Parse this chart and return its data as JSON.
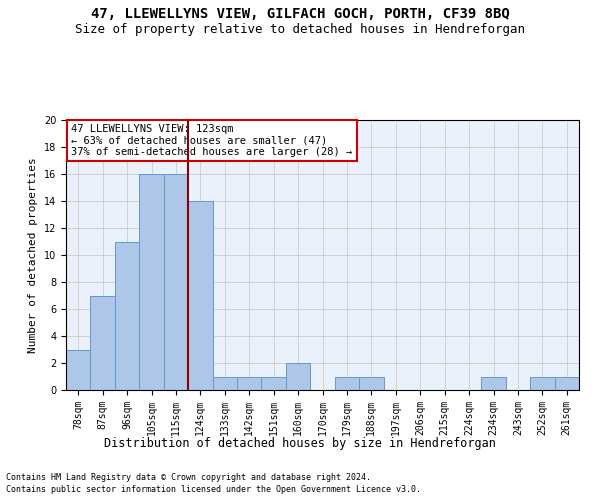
{
  "title1": "47, LLEWELLYNS VIEW, GILFACH GOCH, PORTH, CF39 8BQ",
  "title2": "Size of property relative to detached houses in Hendreforgan",
  "xlabel": "Distribution of detached houses by size in Hendreforgan",
  "ylabel": "Number of detached properties",
  "footnote1": "Contains HM Land Registry data © Crown copyright and database right 2024.",
  "footnote2": "Contains public sector information licensed under the Open Government Licence v3.0.",
  "bin_labels": [
    "78sqm",
    "87sqm",
    "96sqm",
    "105sqm",
    "115sqm",
    "124sqm",
    "133sqm",
    "142sqm",
    "151sqm",
    "160sqm",
    "170sqm",
    "179sqm",
    "188sqm",
    "197sqm",
    "206sqm",
    "215sqm",
    "224sqm",
    "234sqm",
    "243sqm",
    "252sqm",
    "261sqm"
  ],
  "bar_values": [
    3,
    7,
    11,
    16,
    16,
    14,
    1,
    1,
    1,
    2,
    0,
    1,
    1,
    0,
    0,
    0,
    0,
    1,
    0,
    1,
    1
  ],
  "bar_color": "#aec6e8",
  "bar_edge_color": "#5b9bd5",
  "property_line_color": "#8b0000",
  "annotation_text": "47 LLEWELLYNS VIEW: 123sqm\n← 63% of detached houses are smaller (47)\n37% of semi-detached houses are larger (28) →",
  "annotation_box_color": "#ffffff",
  "annotation_box_edge_color": "#cc0000",
  "ylim": [
    0,
    20
  ],
  "yticks": [
    0,
    2,
    4,
    6,
    8,
    10,
    12,
    14,
    16,
    18,
    20
  ],
  "grid_color": "#cccccc",
  "bg_color": "#eaf1fb",
  "title1_fontsize": 10,
  "title2_fontsize": 9,
  "xlabel_fontsize": 8.5,
  "ylabel_fontsize": 8,
  "tick_fontsize": 7,
  "annotation_fontsize": 7.5,
  "footnote_fontsize": 6
}
